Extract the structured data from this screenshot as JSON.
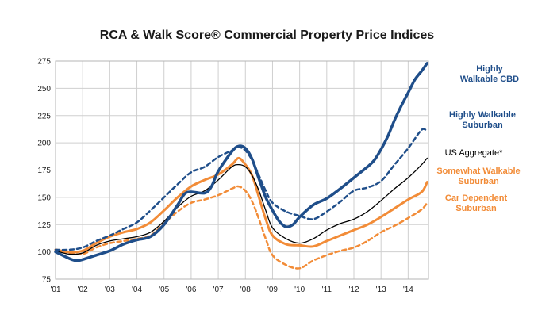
{
  "colors": {
    "navy": "#1f4e8a",
    "orange": "#f28c38",
    "black": "#000000",
    "grid": "#cfcfcf"
  },
  "chart_data": {
    "type": "line",
    "title": "RCA & Walk Score® Commercial Property Price Indices",
    "xlabel": "",
    "ylabel": "",
    "xlim": [
      2001.0,
      2014.75
    ],
    "ylim": [
      75,
      275
    ],
    "y_ticks": [
      75,
      100,
      125,
      150,
      175,
      200,
      225,
      250,
      275
    ],
    "x_ticks": [
      {
        "x": 2001,
        "label": "'01"
      },
      {
        "x": 2002,
        "label": "'02"
      },
      {
        "x": 2003,
        "label": "'03"
      },
      {
        "x": 2004,
        "label": "'04"
      },
      {
        "x": 2005,
        "label": "'05"
      },
      {
        "x": 2006,
        "label": "'06"
      },
      {
        "x": 2007,
        "label": "'07"
      },
      {
        "x": 2008,
        "label": "'08"
      },
      {
        "x": 2009,
        "label": "'09"
      },
      {
        "x": 2010,
        "label": "'10"
      },
      {
        "x": 2011,
        "label": "'11"
      },
      {
        "x": 2012,
        "label": "'12"
      },
      {
        "x": 2013,
        "label": "'13"
      },
      {
        "x": 2014,
        "label": "'14"
      }
    ],
    "grid": true,
    "series": [
      {
        "name": "Highly Walkable CBD",
        "legend_lines": [
          "Highly",
          "Walkable CBD"
        ],
        "color": "#1f4e8a",
        "style": "solid",
        "width": 3.5,
        "points": [
          [
            2001.0,
            100
          ],
          [
            2001.5,
            94
          ],
          [
            2001.75,
            92
          ],
          [
            2002.0,
            93
          ],
          [
            2002.5,
            97
          ],
          [
            2003.0,
            101
          ],
          [
            2003.5,
            107
          ],
          [
            2004.0,
            111
          ],
          [
            2004.5,
            114
          ],
          [
            2005.0,
            125
          ],
          [
            2005.5,
            143
          ],
          [
            2005.75,
            153
          ],
          [
            2006.0,
            155
          ],
          [
            2006.5,
            154
          ],
          [
            2006.75,
            160
          ],
          [
            2007.0,
            174
          ],
          [
            2007.5,
            192
          ],
          [
            2007.75,
            197
          ],
          [
            2008.0,
            195
          ],
          [
            2008.25,
            185
          ],
          [
            2008.5,
            167
          ],
          [
            2008.75,
            150
          ],
          [
            2009.0,
            138
          ],
          [
            2009.25,
            128
          ],
          [
            2009.5,
            123
          ],
          [
            2009.75,
            125
          ],
          [
            2010.0,
            132
          ],
          [
            2010.5,
            143
          ],
          [
            2011.0,
            149
          ],
          [
            2011.5,
            158
          ],
          [
            2012.0,
            168
          ],
          [
            2012.5,
            178
          ],
          [
            2012.75,
            184
          ],
          [
            2013.0,
            194
          ],
          [
            2013.25,
            206
          ],
          [
            2013.5,
            221
          ],
          [
            2013.75,
            234
          ],
          [
            2014.0,
            246
          ],
          [
            2014.25,
            258
          ],
          [
            2014.5,
            266
          ],
          [
            2014.7,
            273
          ]
        ]
      },
      {
        "name": "Highly Walkable Suburban",
        "legend_lines": [
          "Highly Walkable",
          "Suburban"
        ],
        "color": "#1f4e8a",
        "style": "dashed",
        "width": 2.5,
        "points": [
          [
            2001.0,
            102
          ],
          [
            2001.5,
            102
          ],
          [
            2002.0,
            104
          ],
          [
            2002.5,
            110
          ],
          [
            2003.0,
            115
          ],
          [
            2003.5,
            121
          ],
          [
            2004.0,
            127
          ],
          [
            2004.5,
            138
          ],
          [
            2005.0,
            150
          ],
          [
            2005.5,
            162
          ],
          [
            2006.0,
            173
          ],
          [
            2006.5,
            178
          ],
          [
            2007.0,
            187
          ],
          [
            2007.5,
            193
          ],
          [
            2007.75,
            196
          ],
          [
            2008.0,
            193
          ],
          [
            2008.25,
            184
          ],
          [
            2008.5,
            170
          ],
          [
            2008.75,
            156
          ],
          [
            2009.0,
            145
          ],
          [
            2009.5,
            137
          ],
          [
            2010.0,
            133
          ],
          [
            2010.5,
            130
          ],
          [
            2011.0,
            137
          ],
          [
            2011.5,
            146
          ],
          [
            2012.0,
            156
          ],
          [
            2012.5,
            159
          ],
          [
            2013.0,
            165
          ],
          [
            2013.5,
            180
          ],
          [
            2014.0,
            195
          ],
          [
            2014.5,
            212
          ],
          [
            2014.7,
            210
          ]
        ]
      },
      {
        "name": "US Aggregate*",
        "legend_lines": [
          "US Aggregate*"
        ],
        "color": "#000000",
        "style": "solid",
        "width": 1.3,
        "points": [
          [
            2001.0,
            101
          ],
          [
            2001.5,
            98
          ],
          [
            2002.0,
            99
          ],
          [
            2002.5,
            106
          ],
          [
            2003.0,
            110
          ],
          [
            2003.5,
            112
          ],
          [
            2004.0,
            114
          ],
          [
            2004.5,
            118
          ],
          [
            2005.0,
            128
          ],
          [
            2005.5,
            141
          ],
          [
            2006.0,
            151
          ],
          [
            2006.5,
            156
          ],
          [
            2007.0,
            166
          ],
          [
            2007.5,
            178
          ],
          [
            2007.75,
            180
          ],
          [
            2008.0,
            178
          ],
          [
            2008.25,
            170
          ],
          [
            2008.5,
            156
          ],
          [
            2008.75,
            138
          ],
          [
            2009.0,
            122
          ],
          [
            2009.5,
            112
          ],
          [
            2010.0,
            108
          ],
          [
            2010.5,
            112
          ],
          [
            2011.0,
            120
          ],
          [
            2011.5,
            126
          ],
          [
            2012.0,
            130
          ],
          [
            2012.5,
            137
          ],
          [
            2013.0,
            147
          ],
          [
            2013.5,
            158
          ],
          [
            2014.0,
            168
          ],
          [
            2014.5,
            180
          ],
          [
            2014.7,
            186
          ]
        ]
      },
      {
        "name": "Somewhat Walkable Suburban",
        "legend_lines": [
          "Somewhat Walkable",
          "Suburban"
        ],
        "color": "#f28c38",
        "style": "solid",
        "width": 3,
        "points": [
          [
            2001.0,
            102
          ],
          [
            2001.5,
            100
          ],
          [
            2002.0,
            101
          ],
          [
            2002.5,
            108
          ],
          [
            2003.0,
            114
          ],
          [
            2003.5,
            118
          ],
          [
            2004.0,
            121
          ],
          [
            2004.5,
            127
          ],
          [
            2005.0,
            138
          ],
          [
            2005.5,
            150
          ],
          [
            2006.0,
            160
          ],
          [
            2006.5,
            166
          ],
          [
            2007.0,
            171
          ],
          [
            2007.5,
            180
          ],
          [
            2007.75,
            186
          ],
          [
            2008.0,
            180
          ],
          [
            2008.25,
            170
          ],
          [
            2008.5,
            150
          ],
          [
            2008.75,
            130
          ],
          [
            2009.0,
            115
          ],
          [
            2009.5,
            107
          ],
          [
            2010.0,
            106
          ],
          [
            2010.5,
            105
          ],
          [
            2011.0,
            110
          ],
          [
            2011.5,
            115
          ],
          [
            2012.0,
            120
          ],
          [
            2012.5,
            125
          ],
          [
            2013.0,
            132
          ],
          [
            2013.5,
            140
          ],
          [
            2014.0,
            148
          ],
          [
            2014.5,
            155
          ],
          [
            2014.7,
            164
          ]
        ]
      },
      {
        "name": "Car Dependent Suburban",
        "legend_lines": [
          "Car Dependent",
          "Suburban"
        ],
        "color": "#f28c38",
        "style": "dashed",
        "width": 2.5,
        "points": [
          [
            2001.0,
            101
          ],
          [
            2001.5,
            99
          ],
          [
            2002.0,
            98
          ],
          [
            2002.5,
            104
          ],
          [
            2003.0,
            108
          ],
          [
            2003.5,
            110
          ],
          [
            2004.0,
            112
          ],
          [
            2004.5,
            115
          ],
          [
            2005.0,
            126
          ],
          [
            2005.5,
            137
          ],
          [
            2006.0,
            145
          ],
          [
            2006.5,
            148
          ],
          [
            2007.0,
            152
          ],
          [
            2007.5,
            158
          ],
          [
            2007.75,
            160
          ],
          [
            2008.0,
            156
          ],
          [
            2008.25,
            146
          ],
          [
            2008.5,
            130
          ],
          [
            2008.75,
            112
          ],
          [
            2009.0,
            97
          ],
          [
            2009.5,
            88
          ],
          [
            2010.0,
            85
          ],
          [
            2010.5,
            92
          ],
          [
            2011.0,
            97
          ],
          [
            2011.5,
            101
          ],
          [
            2012.0,
            104
          ],
          [
            2012.5,
            110
          ],
          [
            2013.0,
            118
          ],
          [
            2013.5,
            124
          ],
          [
            2014.0,
            131
          ],
          [
            2014.5,
            139
          ],
          [
            2014.7,
            145
          ]
        ]
      }
    ]
  }
}
